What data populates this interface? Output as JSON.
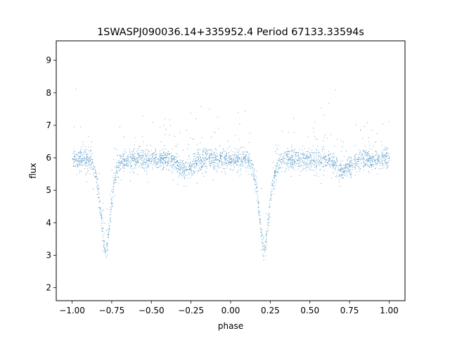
{
  "chart_data": {
    "type": "scatter",
    "title": "1SWASPJ090036.14+335952.4 Period 67133.33594s",
    "xlabel": "phase",
    "ylabel": "flux",
    "xlim": [
      -1.1,
      1.1
    ],
    "ylim": [
      1.6,
      9.6
    ],
    "xticks": [
      -1.0,
      -0.75,
      -0.5,
      -0.25,
      0.0,
      0.25,
      0.5,
      0.75,
      1.0
    ],
    "xtick_labels": [
      "−1.00",
      "−0.75",
      "−0.50",
      "−0.25",
      "0.00",
      "0.25",
      "0.50",
      "0.75",
      "1.00"
    ],
    "yticks": [
      2,
      3,
      4,
      5,
      6,
      7,
      8,
      9
    ],
    "ytick_labels": [
      "2",
      "3",
      "4",
      "5",
      "6",
      "7",
      "8",
      "9"
    ],
    "grid": false,
    "legend": "none",
    "point_color": "#1f77b4",
    "light_curve": {
      "phase_range": [
        -1.0,
        1.0
      ],
      "baseline_flux": 5.95,
      "primary_minima": [
        {
          "phase": -0.79,
          "flux": 3.1
        },
        {
          "phase": 0.21,
          "flux": 3.1
        }
      ],
      "secondary_minima": [
        {
          "phase": -0.29,
          "flux": 5.6
        },
        {
          "phase": 0.71,
          "flux": 5.6
        }
      ]
    }
  }
}
